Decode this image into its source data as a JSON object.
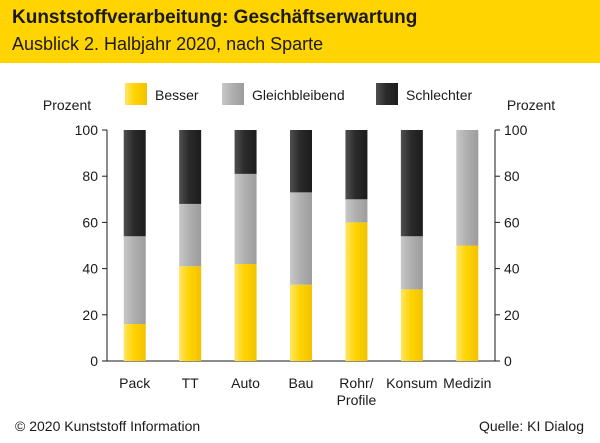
{
  "header": {
    "title": "Kunststoffverarbeitung: Geschäftserwartung",
    "subtitle": "Ausblick 2. Halbjahr 2020, nach Sparte"
  },
  "footer": {
    "copyright": "© 2020 Kunststoff Information",
    "source": "Quelle: KI Dialog"
  },
  "colors": {
    "header_bg": "#ffd400",
    "besser": "#ffd400",
    "gleichbleibend": "#b0b0b0",
    "schlechter": "#2b2b2b"
  },
  "chart_data": {
    "type": "bar",
    "stacked": true,
    "title": "",
    "ylabel_left": "Prozent",
    "ylabel_right": "Prozent",
    "ylim": [
      0,
      100
    ],
    "yticks": [
      0,
      20,
      40,
      60,
      80,
      100
    ],
    "grid": false,
    "legend_position": "top",
    "categories": [
      "Pack",
      "TT",
      "Auto",
      "Bau",
      "Rohr/ Profile",
      "Konsum",
      "Medizin"
    ],
    "category_lines": [
      [
        "Pack"
      ],
      [
        "TT"
      ],
      [
        "Auto"
      ],
      [
        "Bau"
      ],
      [
        "Rohr/",
        "Profile"
      ],
      [
        "Konsum"
      ],
      [
        "Medizin"
      ]
    ],
    "series": [
      {
        "name": "Besser",
        "color": "#ffd400",
        "values": [
          16,
          41,
          42,
          33,
          60,
          31,
          50
        ]
      },
      {
        "name": "Gleichbleibend",
        "color": "#b0b0b0",
        "values": [
          38,
          27,
          39,
          40,
          10,
          23,
          50
        ]
      },
      {
        "name": "Schlechter",
        "color": "#2b2b2b",
        "values": [
          46,
          32,
          19,
          27,
          30,
          46,
          0
        ]
      }
    ]
  }
}
